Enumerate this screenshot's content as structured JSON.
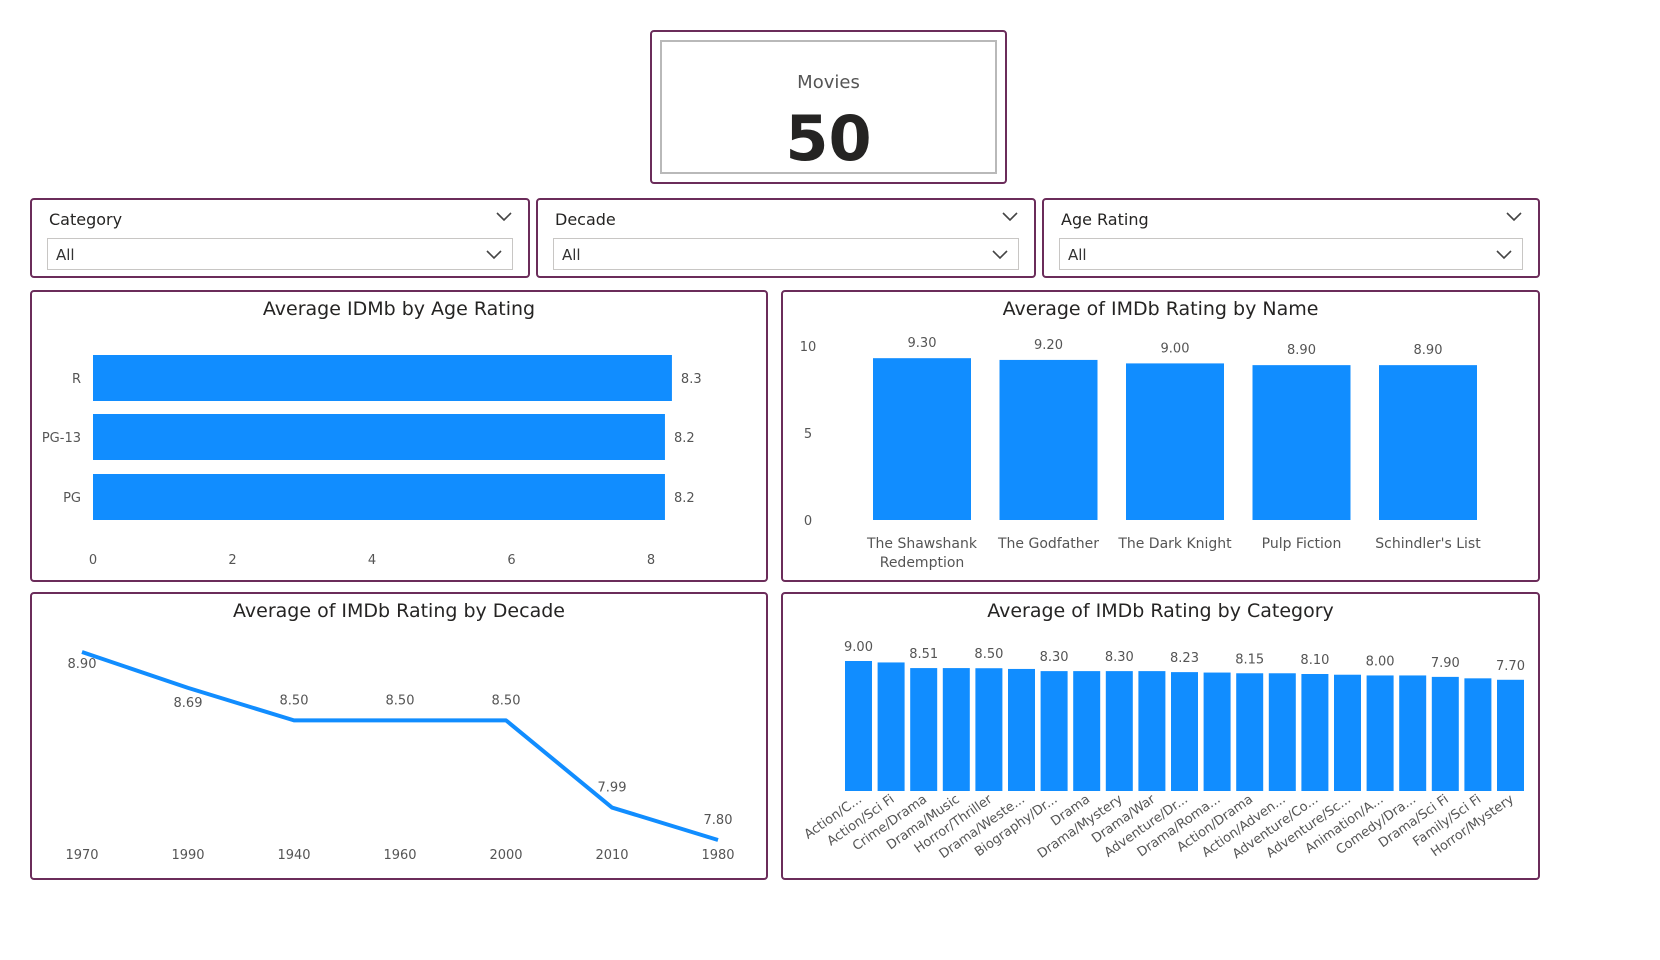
{
  "kpi": {
    "label": "Movies",
    "value": "50"
  },
  "slicers": [
    {
      "title": "Category",
      "value": "All"
    },
    {
      "title": "Decade",
      "value": "All"
    },
    {
      "title": "Age Rating",
      "value": "All"
    }
  ],
  "colors": {
    "bar": "#118dff",
    "border": "#6b2c5a"
  },
  "chart_data": [
    {
      "type": "bar",
      "orientation": "horizontal",
      "title": "Average IDMb by Age Rating",
      "categories": [
        "R",
        "PG-13",
        "PG"
      ],
      "values": [
        8.3,
        8.2,
        8.2
      ],
      "labels": [
        "8.3",
        "8.2",
        "8.2"
      ],
      "xticks": [
        "0",
        "2",
        "4",
        "6",
        "8"
      ],
      "xlim": [
        0,
        9
      ]
    },
    {
      "type": "bar",
      "title": "Average of IMDb Rating by Name",
      "categories": [
        "The Shawshank Redemption",
        "The Godfather",
        "The Dark Knight",
        "Pulp Fiction",
        "Schindler's List"
      ],
      "category_lines": [
        [
          "The Shawshank",
          "Redemption"
        ],
        [
          "The Godfather"
        ],
        [
          "The Dark Knight"
        ],
        [
          "Pulp Fiction"
        ],
        [
          "Schindler's List"
        ]
      ],
      "values": [
        9.3,
        9.2,
        9.0,
        8.9,
        8.9
      ],
      "labels": [
        "9.30",
        "9.20",
        "9.00",
        "8.90",
        "8.90"
      ],
      "yticks": [
        "0",
        "5",
        "10"
      ],
      "ylim": [
        0,
        10
      ]
    },
    {
      "type": "line",
      "title": "Average of IMDb Rating by Decade",
      "x": [
        "1970",
        "1990",
        "1940",
        "1960",
        "2000",
        "2010",
        "1980"
      ],
      "values": [
        8.9,
        8.69,
        8.5,
        8.5,
        8.5,
        7.99,
        7.8
      ],
      "labels": [
        "8.90",
        "8.69",
        "8.50",
        "8.50",
        "8.50",
        "7.99",
        "7.80"
      ],
      "ylim": [
        7.8,
        8.9
      ]
    },
    {
      "type": "bar",
      "title": "Average of IMDb Rating by Category",
      "categories": [
        "Action/C...",
        "Action/Sci Fi",
        "Crime/Drama",
        "Drama/Music",
        "Horror/Thriller",
        "Drama/Weste...",
        "Biography/Dr...",
        "Drama",
        "Drama/Mystery",
        "Drama/War",
        "Adventure/Dr...",
        "Drama/Roma...",
        "Action/Drama",
        "Action/Adven...",
        "Adventure/Co...",
        "Adventure/Sc...",
        "Animation/A...",
        "Comedy/Dra...",
        "Drama/Sci Fi",
        "Family/Sci Fi",
        "Horror/Mystery"
      ],
      "values": [
        9.0,
        8.9,
        8.51,
        8.51,
        8.5,
        8.45,
        8.3,
        8.3,
        8.3,
        8.3,
        8.23,
        8.2,
        8.15,
        8.15,
        8.1,
        8.05,
        8.0,
        8.0,
        7.9,
        7.8,
        7.7
      ],
      "labels": [
        "9.00",
        "",
        "8.51",
        "",
        "8.50",
        "",
        "8.30",
        "",
        "8.30",
        "",
        "8.23",
        "",
        "8.15",
        "",
        "8.10",
        "",
        "8.00",
        "",
        "7.90",
        "",
        "7.70"
      ]
    }
  ]
}
